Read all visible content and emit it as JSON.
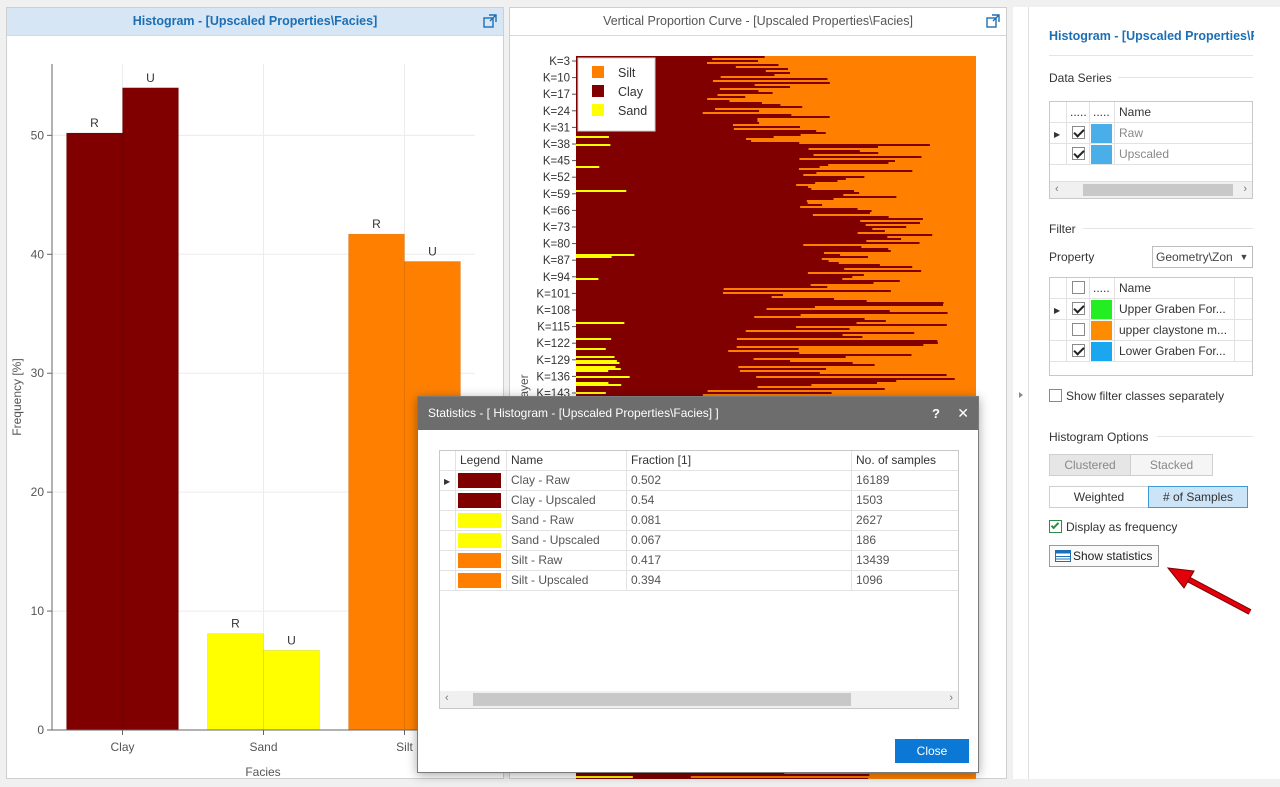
{
  "histogram_panel": {
    "title": "Histogram - [Upscaled Properties\\Facies]"
  },
  "vpc_panel": {
    "title": "Vertical Proportion Curve - [Upscaled Properties\\Facies]",
    "y_axis_label": "ayer",
    "legend": [
      {
        "label": "Silt",
        "color": "#ff8000"
      },
      {
        "label": "Clay",
        "color": "#800000"
      },
      {
        "label": "Sand",
        "color": "#ffff00"
      }
    ],
    "layer_ticks": [
      "K=3",
      "K=10",
      "K=17",
      "K=24",
      "K=31",
      "K=38",
      "K=45",
      "K=52",
      "K=59",
      "K=66",
      "K=73",
      "K=80",
      "K=87",
      "K=94",
      "K=101",
      "K=108",
      "K=115",
      "K=122",
      "K=129",
      "K=136",
      "K=143"
    ]
  },
  "chart_data": {
    "type": "bar",
    "categories": [
      "Clay",
      "Sand",
      "Silt"
    ],
    "series": [
      {
        "name": "R",
        "values": [
          50.2,
          8.1,
          41.7
        ],
        "colors": [
          "#800000",
          "#ffff00",
          "#ff8000"
        ]
      },
      {
        "name": "U",
        "values": [
          54.0,
          6.7,
          39.4
        ],
        "colors": [
          "#800000",
          "#ffff00",
          "#ff8000"
        ]
      }
    ],
    "xlabel": "Facies",
    "ylabel": "Frequency [%]",
    "ylim": [
      0,
      56
    ],
    "yticks": [
      "0",
      "10",
      "20",
      "30",
      "40",
      "50"
    ],
    "grid": true
  },
  "stats_dialog": {
    "title": "Statistics - [ Histogram - [Upscaled Properties\\Facies] ]",
    "help_label": "?",
    "close_x": "✕",
    "columns": [
      "Legend",
      "Name",
      "Fraction [1]",
      "No. of samples"
    ],
    "rows": [
      {
        "color": "#800000",
        "name": "Clay - Raw",
        "fraction": "0.502",
        "samples": "16189"
      },
      {
        "color": "#800000",
        "name": "Clay - Upscaled",
        "fraction": "0.54",
        "samples": "1503"
      },
      {
        "color": "#ffff00",
        "name": "Sand - Raw",
        "fraction": "0.081",
        "samples": "2627"
      },
      {
        "color": "#ffff00",
        "name": "Sand - Upscaled",
        "fraction": "0.067",
        "samples": "186"
      },
      {
        "color": "#ff8000",
        "name": "Silt - Raw",
        "fraction": "0.417",
        "samples": "13439"
      },
      {
        "color": "#ff8000",
        "name": "Silt - Upscaled",
        "fraction": "0.394",
        "samples": "1096"
      }
    ],
    "close_label": "Close"
  },
  "right_panel": {
    "title": "Histogram - [Upscaled Properties\\Facies]",
    "data_series_label": "Data Series",
    "data_series_columns": [
      ".....",
      ".....",
      "Name"
    ],
    "data_series_rows": [
      {
        "checked": true,
        "color": "#4aaee8",
        "name": "Raw"
      },
      {
        "checked": true,
        "color": "#4aaee8",
        "name": "Upscaled"
      }
    ],
    "filter_label": "Filter",
    "property_label": "Property",
    "property_value": "Geometry\\Zon",
    "filter_columns": [
      "",
      ".....",
      "Name"
    ],
    "filter_rows": [
      {
        "checked": true,
        "color": "#22ee22",
        "name": "Upper Graben For..."
      },
      {
        "checked": false,
        "color": "#ff8c00",
        "name": "upper claystone m..."
      },
      {
        "checked": true,
        "color": "#1aa7f0",
        "name": "Lower Graben For..."
      }
    ],
    "show_filter_separately": "Show filter classes separately",
    "histogram_options_label": "Histogram Options",
    "clustered_label": "Clustered",
    "stacked_label": "Stacked",
    "weighted_label": "Weighted",
    "samples_label": "# of Samples",
    "display_freq_label": "Display as frequency",
    "show_statistics_label": "Show statistics"
  }
}
